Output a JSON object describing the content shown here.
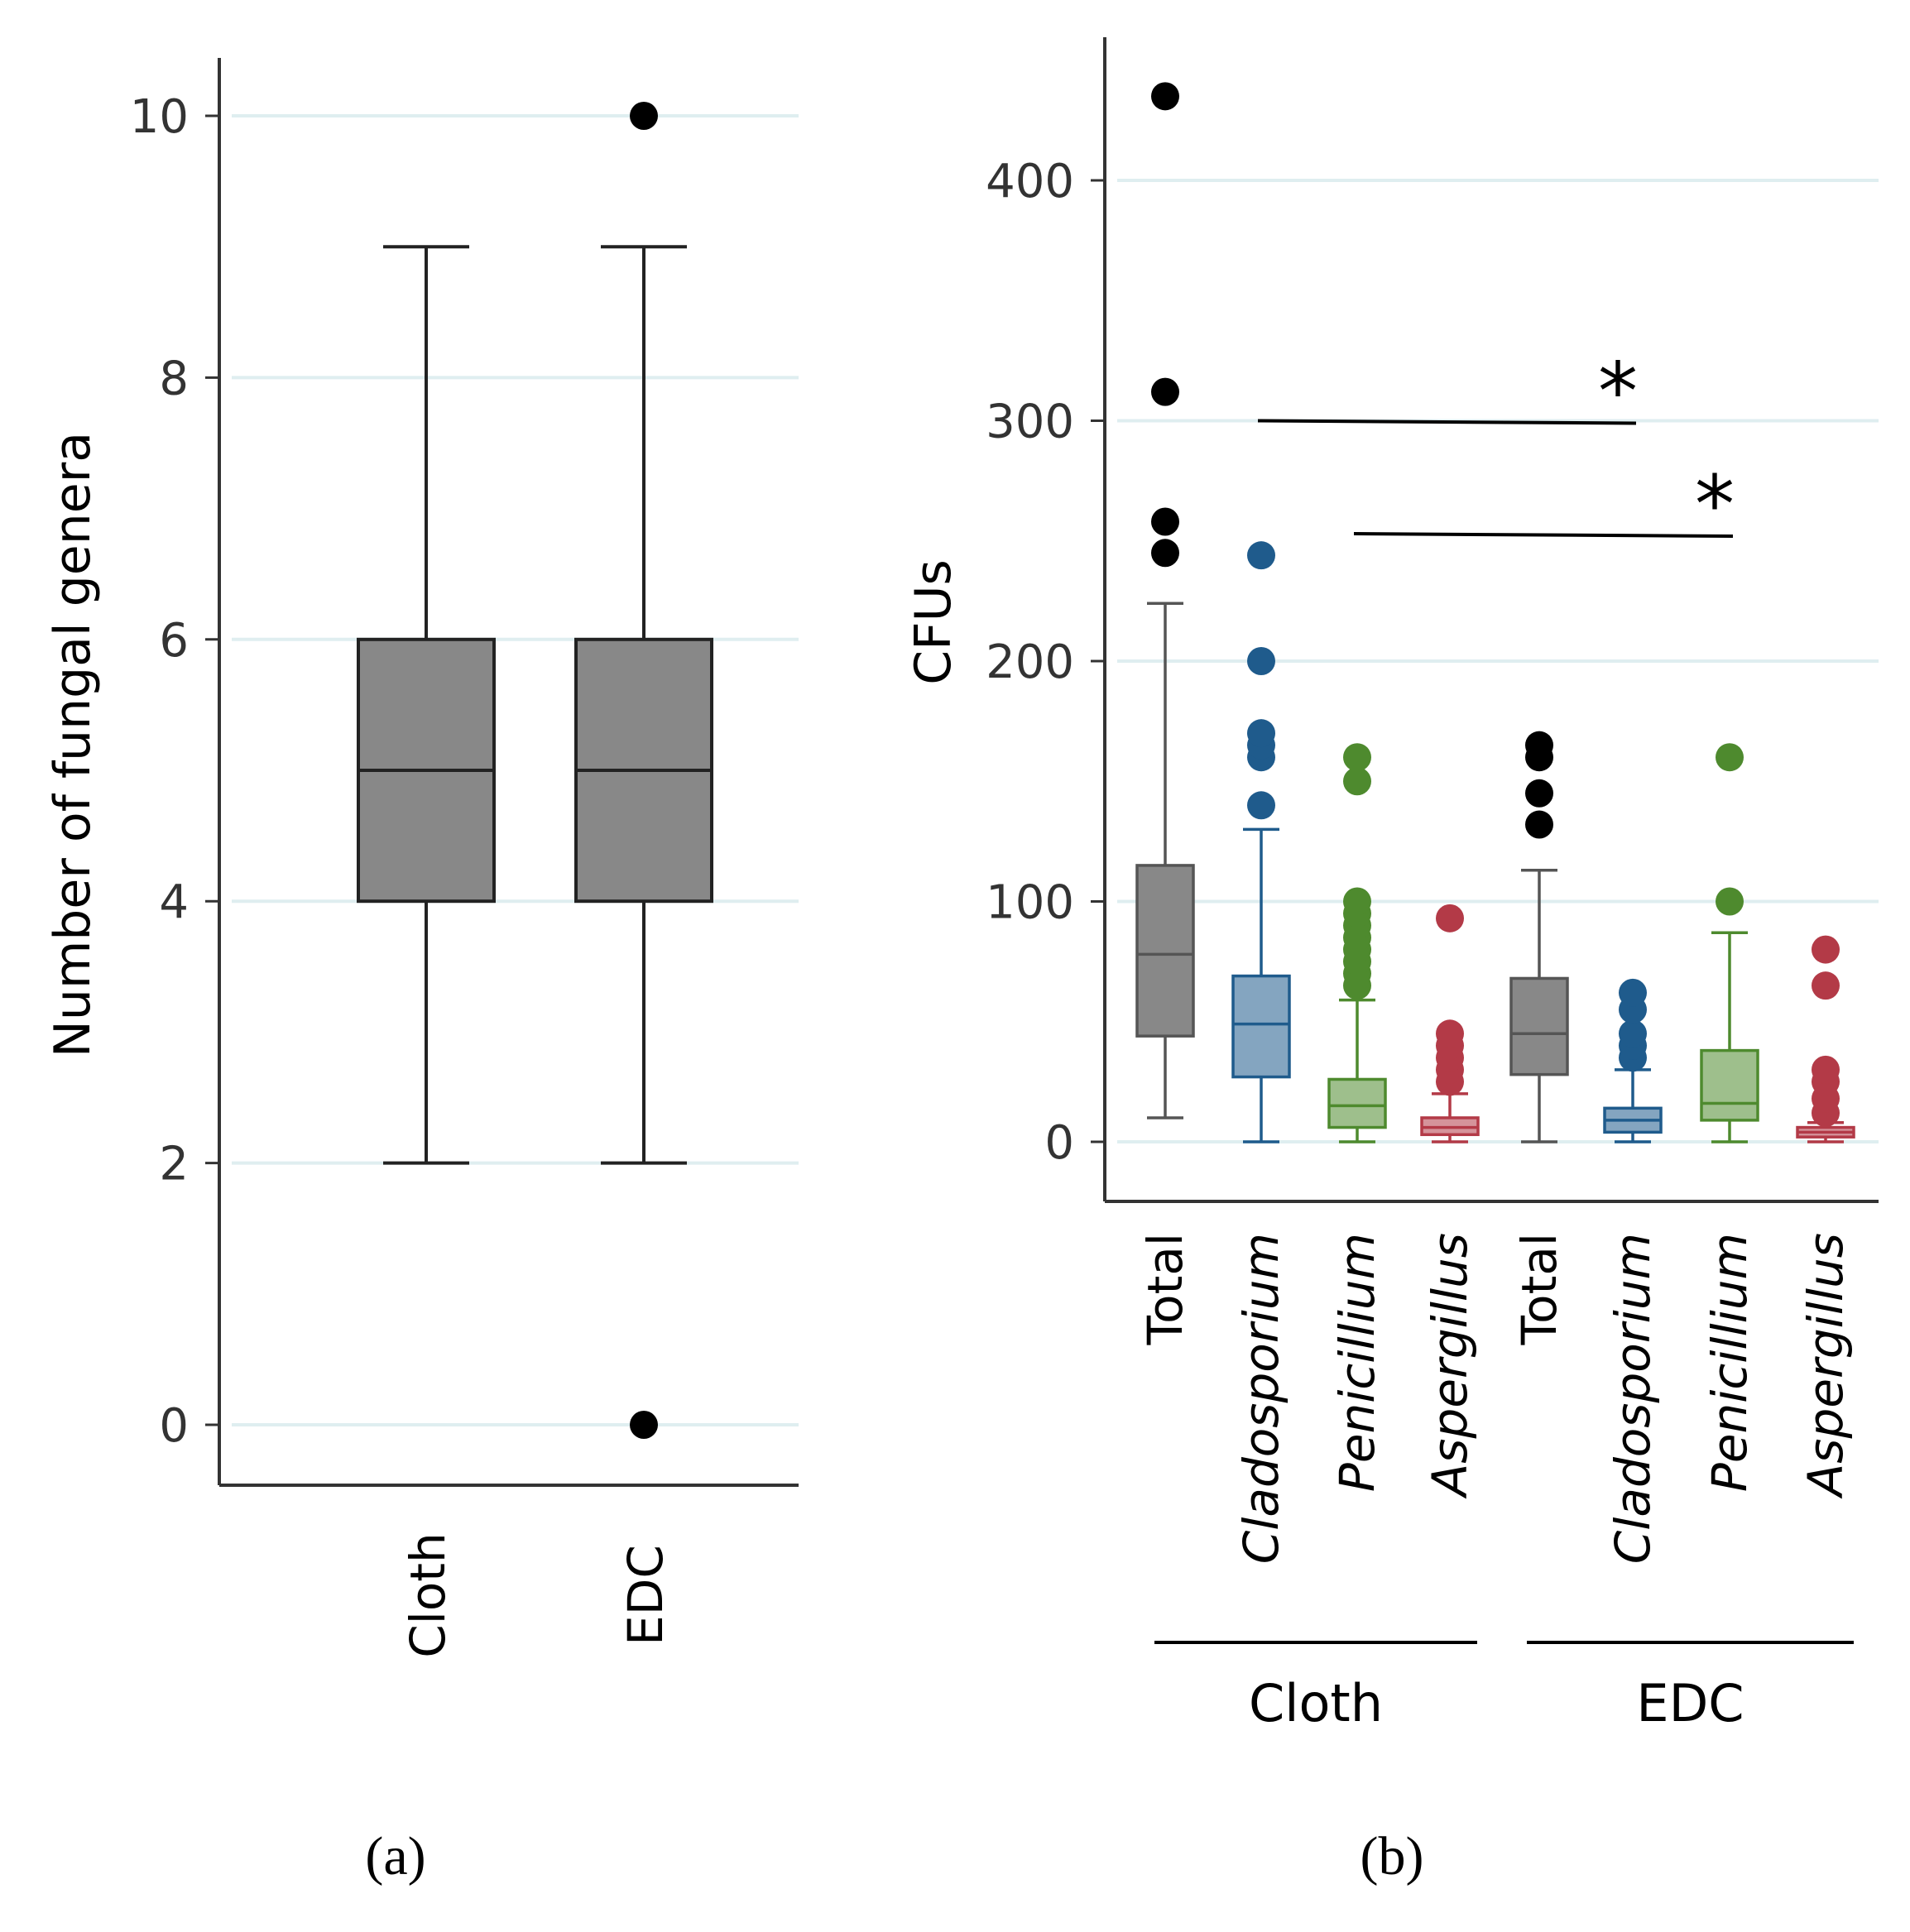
{
  "colors": {
    "total": "#555555",
    "Cladosporium": "#1f5b8c",
    "Penicillium": "#4e8a2e",
    "Aspergillus": "#b33a47",
    "grid": "#dfeef0",
    "axis": "#333333"
  },
  "chart_data": [
    {
      "type": "boxplot",
      "panel": "(a)",
      "ylabel": "Number of fungal genera",
      "xlabel": "",
      "ylim": [
        0,
        10.5
      ],
      "yticks": [
        0,
        2,
        4,
        6,
        8,
        10
      ],
      "grid": true,
      "categories": [
        "Cloth",
        "EDC"
      ],
      "boxes": [
        {
          "label": "Cloth",
          "whisker_low": 2,
          "q1": 4,
          "median": 5,
          "q3": 6,
          "whisker_high": 9,
          "outliers": [],
          "color": "#888888"
        },
        {
          "label": "EDC",
          "whisker_low": 2,
          "q1": 4,
          "median": 5,
          "q3": 6,
          "whisker_high": 9,
          "outliers": [
            0,
            10
          ],
          "color": "#888888"
        }
      ]
    },
    {
      "type": "boxplot",
      "panel": "(b)",
      "ylabel": "CFUs",
      "xlabel": "",
      "ylim": [
        -25,
        450
      ],
      "yticks": [
        0,
        100,
        200,
        300,
        400
      ],
      "grid": true,
      "categories": [
        "Total",
        "Cladosporium",
        "Penicillium",
        "Aspergillus",
        "Total",
        "Cladosporium",
        "Penicillium",
        "Aspergillus"
      ],
      "italic": [
        false,
        true,
        true,
        true,
        false,
        true,
        true,
        true
      ],
      "groups": [
        {
          "label": "Cloth",
          "from": 0,
          "to": 3
        },
        {
          "label": "EDC",
          "from": 4,
          "to": 7
        }
      ],
      "boxes": [
        {
          "label": "Total",
          "group": "Cloth",
          "whisker_low": 10,
          "q1": 44,
          "median": 78,
          "q3": 115,
          "whisker_high": 224,
          "outliers": [
            245,
            258,
            312,
            435
          ],
          "color": "#555555"
        },
        {
          "label": "Cladosporium",
          "group": "Cloth",
          "whisker_low": 0,
          "q1": 27,
          "median": 49,
          "q3": 69,
          "whisker_high": 130,
          "outliers": [
            140,
            160,
            165,
            170,
            200,
            244
          ],
          "color": "#1f5b8c"
        },
        {
          "label": "Penicillium",
          "group": "Cloth",
          "whisker_low": 0,
          "q1": 6,
          "median": 15,
          "q3": 26,
          "whisker_high": 59,
          "outliers": [
            65,
            70,
            75,
            80,
            85,
            90,
            95,
            100,
            150,
            160
          ],
          "color": "#4e8a2e"
        },
        {
          "label": "Aspergillus",
          "group": "Cloth",
          "whisker_low": 0,
          "q1": 3,
          "median": 6,
          "q3": 10,
          "whisker_high": 20,
          "outliers": [
            25,
            30,
            35,
            40,
            45,
            93
          ],
          "color": "#b33a47"
        },
        {
          "label": "Total",
          "group": "EDC",
          "whisker_low": 0,
          "q1": 28,
          "median": 45,
          "q3": 68,
          "whisker_high": 113,
          "outliers": [
            132,
            145,
            160,
            165
          ],
          "color": "#555555"
        },
        {
          "label": "Cladosporium",
          "group": "EDC",
          "whisker_low": 0,
          "q1": 4,
          "median": 9,
          "q3": 14,
          "whisker_high": 30,
          "outliers": [
            35,
            40,
            45,
            55,
            62
          ],
          "color": "#1f5b8c"
        },
        {
          "label": "Penicillium",
          "group": "EDC",
          "whisker_low": 0,
          "q1": 9,
          "median": 16,
          "q3": 38,
          "whisker_high": 87,
          "outliers": [
            100,
            160
          ],
          "color": "#4e8a2e"
        },
        {
          "label": "Aspergillus",
          "group": "EDC",
          "whisker_low": 0,
          "q1": 2,
          "median": 4,
          "q3": 6,
          "whisker_high": 8,
          "outliers": [
            12,
            18,
            25,
            30,
            65,
            80
          ],
          "color": "#b33a47"
        }
      ],
      "significance": [
        {
          "from": "Cladosporium (Cloth)",
          "to": "Cladosporium (EDC)",
          "y": 300,
          "label": "*"
        },
        {
          "from": "Penicillium (Cloth)",
          "to": "Penicillium (EDC)",
          "y": 253,
          "label": "*"
        }
      ]
    }
  ],
  "labels": {
    "panel_a": "(a)",
    "panel_b": "(b)",
    "ylabel_a": "Number of fungal genera",
    "ylabel_b": "CFUs",
    "group_cloth": "Cloth",
    "group_edc": "EDC",
    "star": "*"
  }
}
